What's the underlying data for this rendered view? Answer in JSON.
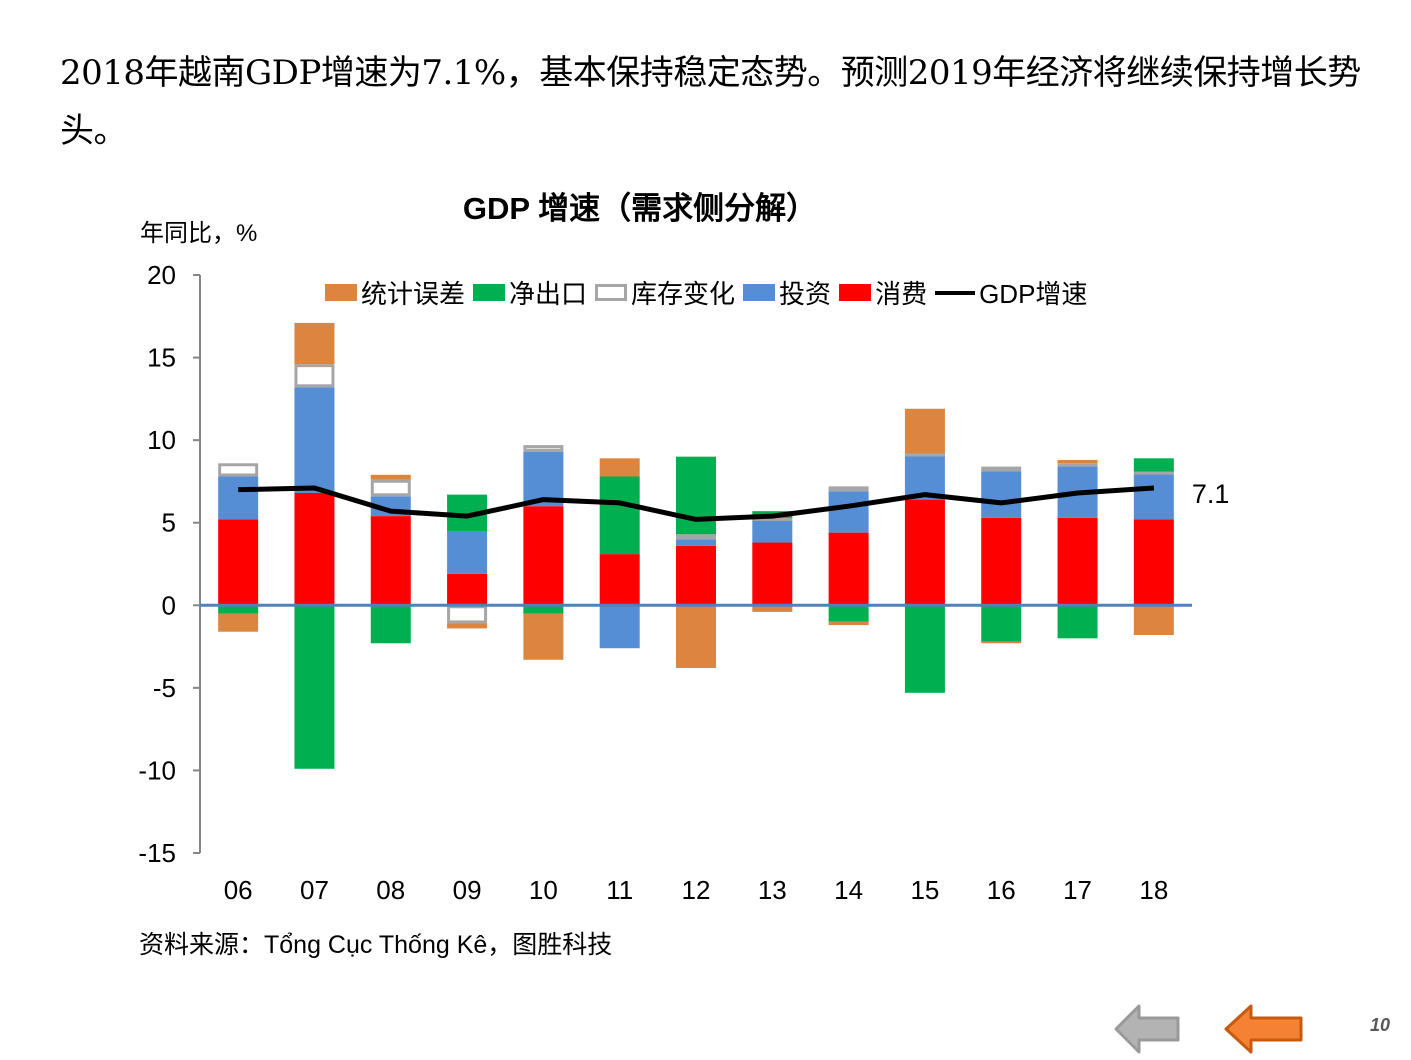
{
  "headline": "2018年越南GDP增速为7.1%，基本保持稳定态势。预测2019年经济将继续保持增长势头。",
  "unit_label": "年同比，%",
  "source": "资料来源：Tổng Cục Thống Kê，图胜科技",
  "page_number": "10",
  "nav": {
    "prev_icon": "left-arrow-gray",
    "back_icon": "left-arrow-orange",
    "colors": {
      "gray": "#a6a6a6",
      "orange": "#f58233"
    }
  },
  "chart_data": {
    "type": "bar",
    "stacked": true,
    "title": "GDP 增速（需求侧分解）",
    "xlabel": "",
    "ylabel": "年同比，%",
    "ylim": [
      -15,
      20
    ],
    "yticks": [
      20,
      15,
      10,
      5,
      0,
      -5,
      -10,
      -15
    ],
    "grid": false,
    "legend_position": "top",
    "categories": [
      "06",
      "07",
      "08",
      "09",
      "10",
      "11",
      "12",
      "13",
      "14",
      "15",
      "16",
      "17",
      "18"
    ],
    "series": [
      {
        "name": "消费",
        "key": "consumption",
        "color": "#ff0000",
        "style": "bar",
        "values": [
          5.2,
          6.8,
          5.4,
          1.9,
          6.0,
          3.1,
          3.6,
          3.8,
          4.4,
          6.4,
          5.3,
          5.3,
          5.2
        ]
      },
      {
        "name": "投资",
        "key": "investment",
        "color": "#558ed5",
        "style": "bar",
        "values": [
          2.6,
          6.4,
          1.2,
          2.6,
          3.3,
          -2.6,
          0.4,
          1.4,
          2.5,
          2.7,
          2.8,
          3.1,
          2.8
        ]
      },
      {
        "name": "库存变化",
        "key": "inventory",
        "color": "#ffffff",
        "outline": "#a6a6a6",
        "style": "bar",
        "values": [
          0.8,
          1.4,
          1.0,
          -1.1,
          0.4,
          0.0,
          0.3,
          0.1,
          0.3,
          0.1,
          0.3,
          0.2,
          0.1
        ]
      },
      {
        "name": "净出口",
        "key": "net_exports",
        "color": "#00b050",
        "style": "bar",
        "values": [
          -0.5,
          -9.9,
          -2.3,
          2.2,
          -0.5,
          4.7,
          4.7,
          0.4,
          -1.0,
          -5.3,
          -2.2,
          -2.0,
          0.8
        ]
      },
      {
        "name": "统计误差",
        "key": "stat_error",
        "color": "#dc853f",
        "style": "bar",
        "values": [
          -1.1,
          2.5,
          0.3,
          -0.3,
          -2.8,
          1.1,
          -3.8,
          -0.4,
          -0.2,
          2.7,
          -0.1,
          0.2,
          -1.8
        ]
      },
      {
        "name": "GDP增速",
        "key": "gdp",
        "color": "#000000",
        "style": "line",
        "values": [
          7.0,
          7.1,
          5.7,
          5.4,
          6.4,
          6.2,
          5.2,
          5.4,
          6.0,
          6.7,
          6.2,
          6.8,
          7.1
        ]
      }
    ],
    "legend_order": [
      "统计误差",
      "净出口",
      "库存变化",
      "投资",
      "消费",
      "GDP增速"
    ],
    "annotations": [
      {
        "category": "18",
        "series": "GDP增速",
        "text": "7.1"
      }
    ],
    "zero_line_color": "#4f81bd",
    "axis_color": "#868686"
  }
}
